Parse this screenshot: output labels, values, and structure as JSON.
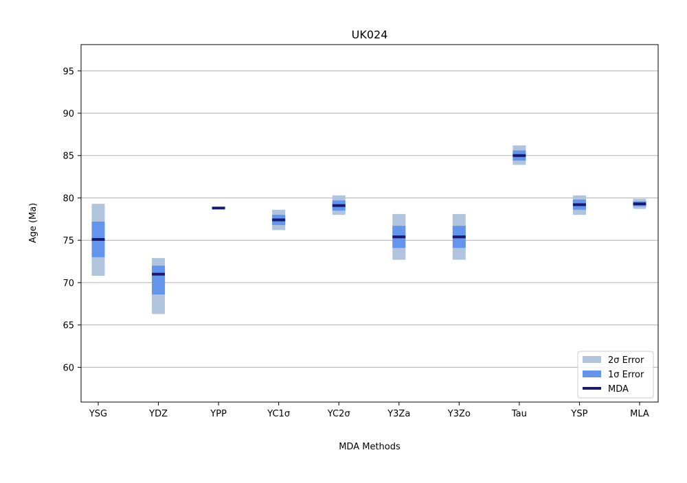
{
  "chart_data": {
    "type": "range",
    "title": "UK024",
    "xlabel": "MDA Methods",
    "ylabel": "Age (Ma)",
    "ylim": [
      55.9,
      98.1
    ],
    "yticks": [
      60,
      65,
      70,
      75,
      80,
      85,
      90,
      95
    ],
    "grid": "horizontal",
    "legend_position": "lower-right",
    "categories": [
      "YSG",
      "YDZ",
      "YPP",
      "YC1σ",
      "YC2σ",
      "Y3Za",
      "Y3Zo",
      "Tau",
      "YSP",
      "MLA"
    ],
    "series": [
      {
        "name": "2σ  Error",
        "color": "#b0c4de",
        "low": [
          70.8,
          66.3,
          null,
          76.2,
          78.0,
          72.7,
          72.7,
          83.9,
          78.0,
          78.7
        ],
        "high": [
          79.3,
          72.9,
          null,
          78.6,
          80.3,
          78.1,
          78.1,
          86.2,
          80.3,
          79.9
        ]
      },
      {
        "name": "1σ  Error",
        "color": "#6495ed",
        "low": [
          73.0,
          68.6,
          null,
          76.8,
          78.5,
          74.1,
          74.1,
          84.4,
          78.6,
          79.0
        ],
        "high": [
          77.2,
          72.0,
          null,
          78.0,
          79.7,
          76.7,
          76.7,
          85.6,
          79.8,
          79.6
        ]
      },
      {
        "name": "MDA",
        "color": "#191970",
        "values": [
          75.1,
          71.0,
          78.8,
          77.4,
          79.1,
          75.4,
          75.4,
          85.0,
          79.2,
          79.3
        ]
      }
    ]
  }
}
